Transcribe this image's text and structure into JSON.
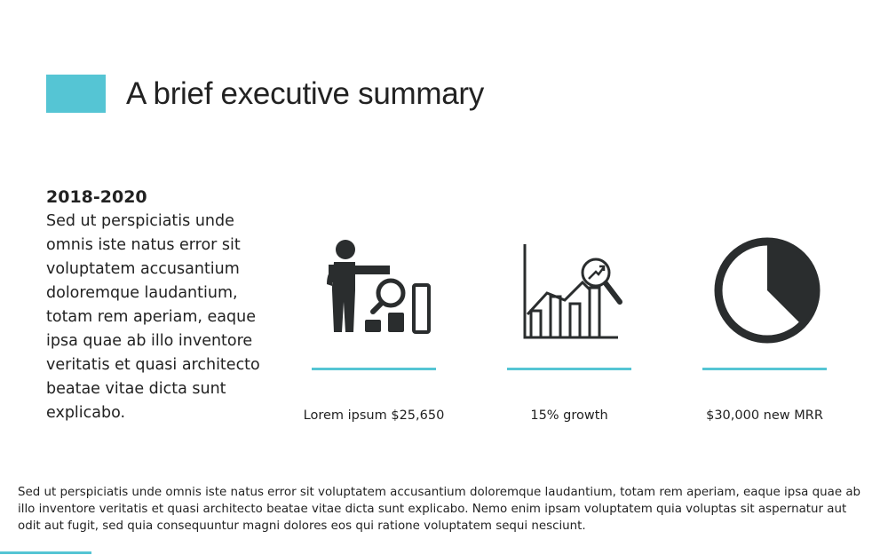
{
  "slide": {
    "title": "A brief executive summary",
    "accent_color": "#55c5d4"
  },
  "summary": {
    "period": "2018-2020",
    "body": "Sed ut perspiciatis unde omnis iste natus error sit voluptatem accusantium doloremque laudantium, totam rem aperiam, eaque ipsa quae ab illo inventore veritatis et quasi architecto beatae vitae dicta sunt explicabo."
  },
  "stats": [
    {
      "icon": "presenter-chart-icon",
      "label": "Lorem ipsum $25,650"
    },
    {
      "icon": "growth-chart-icon",
      "label": "15% growth"
    },
    {
      "icon": "pie-chart-icon",
      "label": "$30,000 new MRR"
    }
  ],
  "footer": {
    "text": "Sed ut perspiciatis unde omnis iste natus error sit voluptatem accusantium doloremque laudantium, totam rem aperiam, eaque ipsa quae ab illo inventore veritatis et quasi architecto beatae vitae dicta sunt explicabo. Nemo enim ipsam voluptatem quia voluptas sit aspernatur aut odit aut fugit, sed quia consequuntur magni dolores eos qui ratione voluptatem sequi nesciunt."
  }
}
